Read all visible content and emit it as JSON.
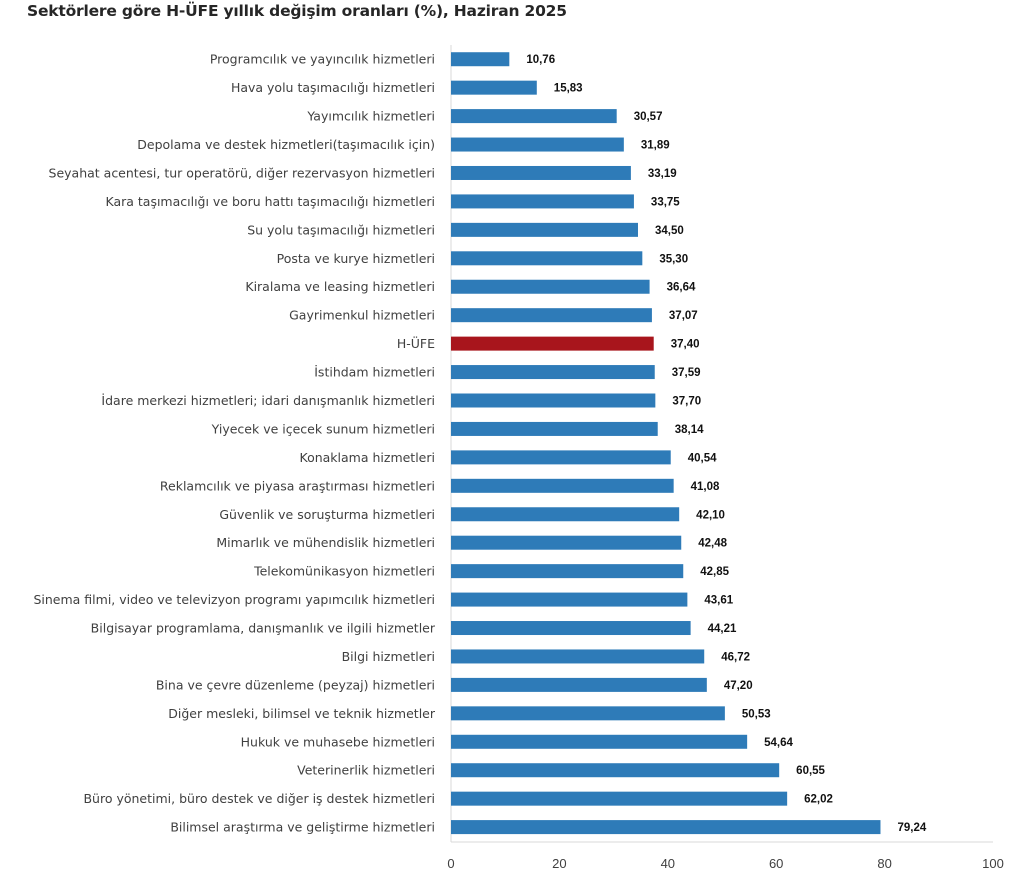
{
  "chart_data": {
    "type": "bar",
    "orientation": "horizontal",
    "title": "Sektörlere göre H-ÜFE yıllık değişim oranları (%), Haziran 2025",
    "xlabel": "",
    "ylabel": "",
    "xlim": [
      0,
      100
    ],
    "x_ticks": [
      0,
      20,
      40,
      60,
      80,
      100
    ],
    "grid": false,
    "legend": "none",
    "bar_color": "#2e7bb8",
    "highlight_color": "#a8151c",
    "highlight_category": "H-ÜFE",
    "decimal_separator": ",",
    "categories": [
      "Programcılık ve yayıncılık hizmetleri",
      "Hava yolu taşımacılığı hizmetleri",
      "Yayımcılık hizmetleri",
      "Depolama ve destek hizmetleri(taşımacılık için)",
      "Seyahat acentesi, tur operatörü, diğer rezervasyon hizmetleri",
      "Kara taşımacılığı ve boru hattı taşımacılığı hizmetleri",
      "Su yolu taşımacılığı hizmetleri",
      "Posta ve kurye hizmetleri",
      "Kiralama ve leasing hizmetleri",
      "Gayrimenkul hizmetleri",
      "H-ÜFE",
      "İstihdam hizmetleri",
      "İdare merkezi hizmetleri; idari danışmanlık hizmetleri",
      "Yiyecek ve içecek sunum hizmetleri",
      "Konaklama hizmetleri",
      "Reklamcılık ve piyasa araştırması hizmetleri",
      "Güvenlik ve soruşturma hizmetleri",
      "Mimarlık ve mühendislik hizmetleri",
      "Telekomünikasyon hizmetleri",
      "Sinema filmi, video ve televizyon programı yapımcılık hizmetleri",
      "Bilgisayar programlama, danışmanlık ve ilgili hizmetler",
      "Bilgi hizmetleri",
      "Bina ve çevre düzenleme (peyzaj) hizmetleri",
      "Diğer mesleki, bilimsel ve teknik hizmetler",
      "Hukuk ve muhasebe hizmetleri",
      "Veterinerlik hizmetleri",
      "Büro yönetimi, büro destek ve diğer iş destek hizmetleri",
      "Bilimsel araştırma ve geliştirme hizmetleri"
    ],
    "values": [
      10.76,
      15.83,
      30.57,
      31.89,
      33.19,
      33.75,
      34.5,
      35.3,
      36.64,
      37.07,
      37.4,
      37.59,
      37.7,
      38.14,
      40.54,
      41.08,
      42.1,
      42.48,
      42.85,
      43.61,
      44.21,
      46.72,
      47.2,
      50.53,
      54.64,
      60.55,
      62.02,
      79.24
    ],
    "value_labels": [
      "10,76",
      "15,83",
      "30,57",
      "31,89",
      "33,19",
      "33,75",
      "34,50",
      "35,30",
      "36,64",
      "37,07",
      "37,40",
      "37,59",
      "37,70",
      "38,14",
      "40,54",
      "41,08",
      "42,10",
      "42,48",
      "42,85",
      "43,61",
      "44,21",
      "46,72",
      "47,20",
      "50,53",
      "54,64",
      "60,55",
      "62,02",
      "79,24"
    ]
  }
}
